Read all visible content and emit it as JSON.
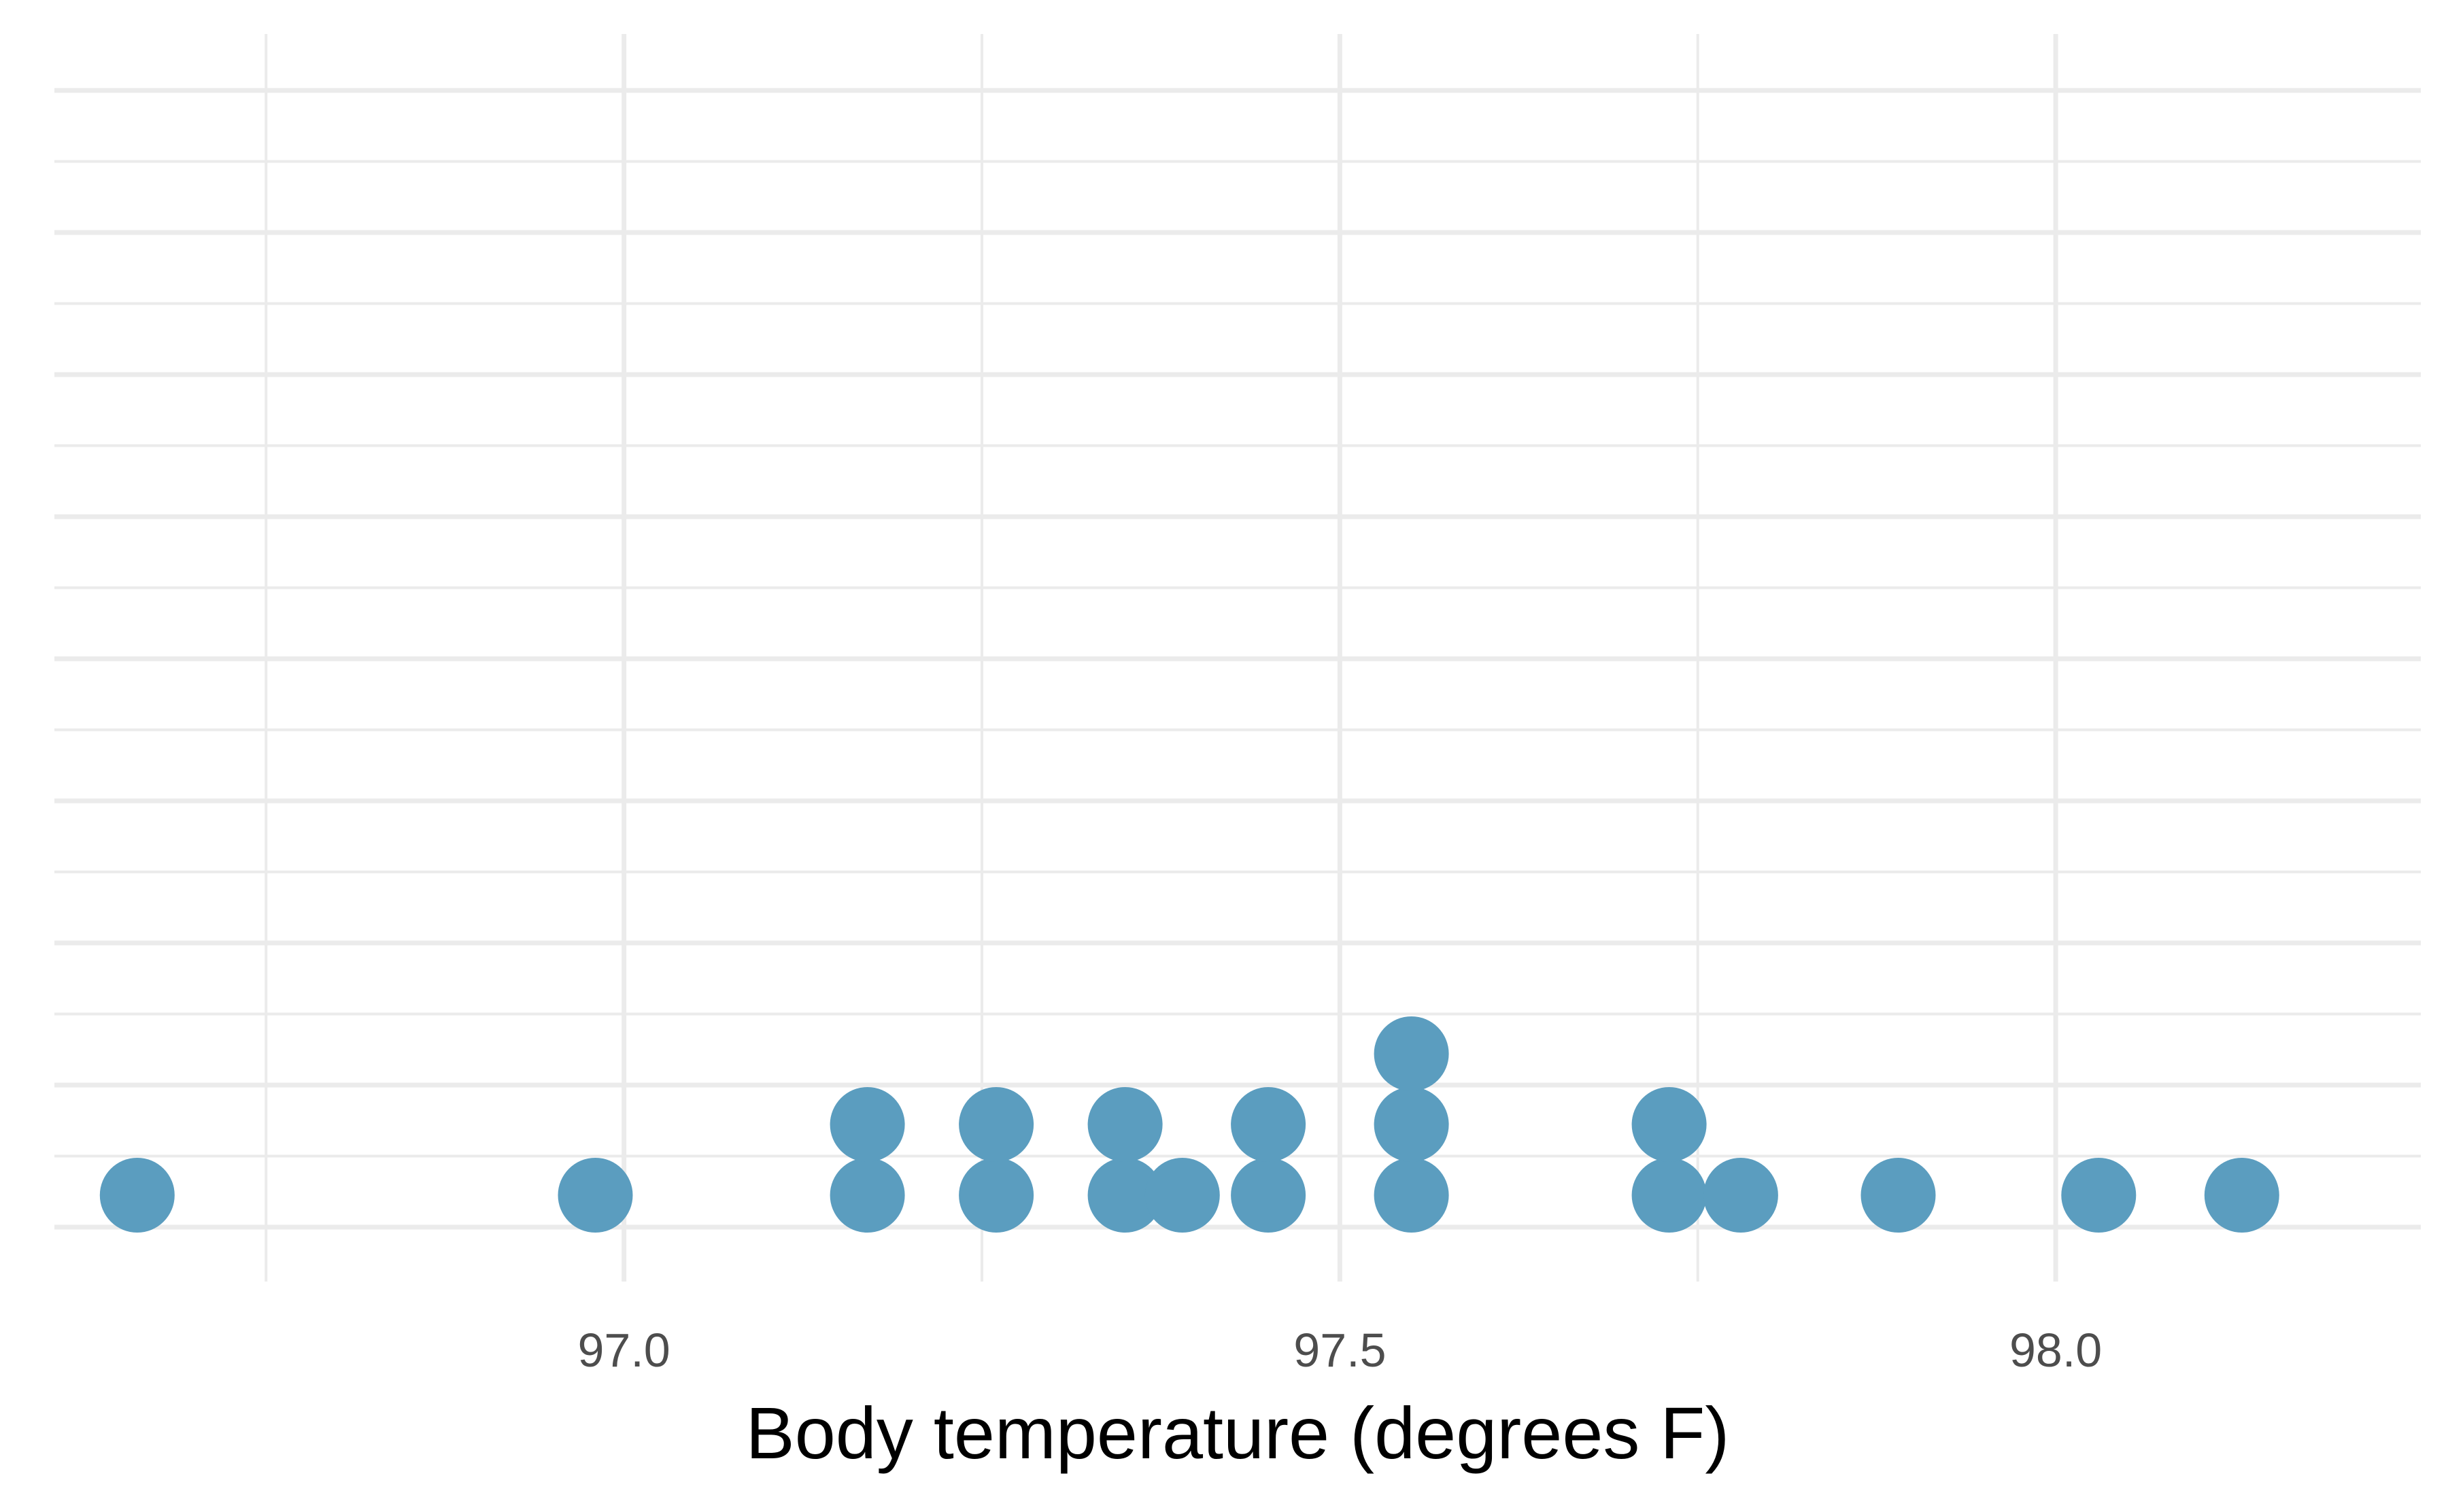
{
  "chart_data": {
    "type": "dot",
    "title": "",
    "xlabel": "Body temperature (degrees F)",
    "ylabel": "",
    "xlim": [
      96.7,
      98.255
    ],
    "x_ticks": [
      97.0,
      97.5,
      98.0
    ],
    "x_tick_labels": [
      "97.0",
      "97.5",
      "98.0"
    ],
    "x_minor_ticks": [
      96.75,
      97.25,
      97.75
    ],
    "y_stack_max": 16,
    "grid": true,
    "legend": "none",
    "dot_color": "#5b9dbf",
    "points": [
      {
        "x": 96.66,
        "count": 1
      },
      {
        "x": 96.98,
        "count": 1
      },
      {
        "x": 97.17,
        "count": 2
      },
      {
        "x": 97.26,
        "count": 2
      },
      {
        "x": 97.35,
        "count": 2
      },
      {
        "x": 97.39,
        "count": 1
      },
      {
        "x": 97.45,
        "count": 2
      },
      {
        "x": 97.55,
        "count": 3
      },
      {
        "x": 97.73,
        "count": 2
      },
      {
        "x": 97.78,
        "count": 1
      },
      {
        "x": 97.89,
        "count": 1
      },
      {
        "x": 98.03,
        "count": 1
      },
      {
        "x": 98.13,
        "count": 1
      }
    ]
  }
}
